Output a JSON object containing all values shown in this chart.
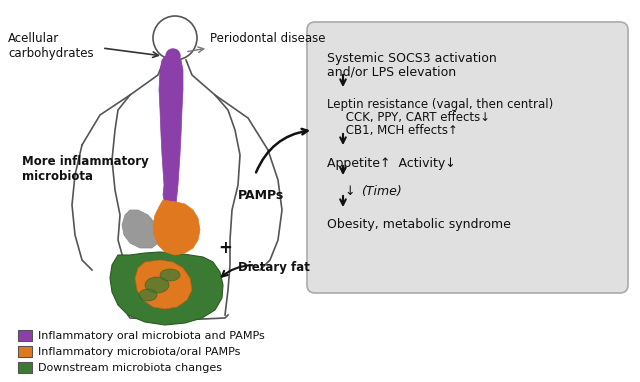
{
  "bg_color": "#ffffff",
  "box_color": "#d8d8d8",
  "box_text_lines": [
    "Systemic SOCS3 activation",
    "and/or LPS elevation",
    "",
    "Leptin resistance (vagal, then central)",
    "CCK, PPY, CART effects↓",
    "CB1, MCH effects↑",
    "",
    "Appetite↑  Activity↓",
    "",
    "↓  (Time)",
    "",
    "Obesity, metabolic syndrome"
  ],
  "body_outline_color": "#333333",
  "purple_color": "#8B3FA8",
  "orange_color": "#E07820",
  "green_color": "#3A7A32",
  "gray_color": "#888888",
  "arrow_color": "#222222",
  "text_color": "#111111",
  "legend_items": [
    {
      "color": "#8B3FA8",
      "label": "Inflammatory oral microbiota and PAMPs"
    },
    {
      "color": "#E07820",
      "label": "Inflammatory microbiota/oral PAMPs"
    },
    {
      "color": "#3A7A32",
      "label": "Downstream microbiota changes"
    }
  ],
  "labels": {
    "acellular": "Acellular\ncarbohydrates",
    "periodontal": "Periodontal disease",
    "more_inflammatory": "More inflammatory\nmicrobiota",
    "pamps": "PAMPs",
    "dietary_fat": "Dietary fat"
  }
}
